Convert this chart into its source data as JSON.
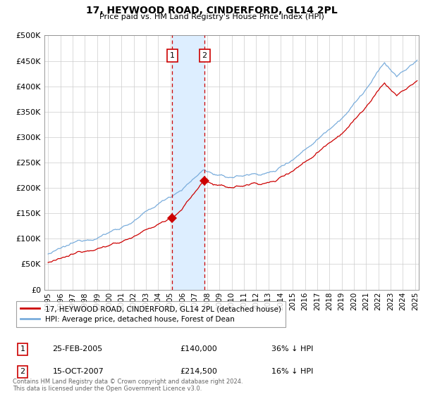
{
  "title": "17, HEYWOOD ROAD, CINDERFORD, GL14 2PL",
  "subtitle": "Price paid vs. HM Land Registry's House Price Index (HPI)",
  "ylabel_ticks": [
    "£0",
    "£50K",
    "£100K",
    "£150K",
    "£200K",
    "£250K",
    "£300K",
    "£350K",
    "£400K",
    "£450K",
    "£500K"
  ],
  "ytick_values": [
    0,
    50000,
    100000,
    150000,
    200000,
    250000,
    300000,
    350000,
    400000,
    450000,
    500000
  ],
  "ylim": [
    0,
    500000
  ],
  "xlim_start": 1994.7,
  "xlim_end": 2025.3,
  "sale1_x": 2005.15,
  "sale1_y": 140000,
  "sale1_label": "1",
  "sale1_date": "25-FEB-2005",
  "sale1_price": "£140,000",
  "sale1_hpi": "36% ↓ HPI",
  "sale2_x": 2007.79,
  "sale2_y": 214500,
  "sale2_label": "2",
  "sale2_date": "15-OCT-2007",
  "sale2_price": "£214,500",
  "sale2_hpi": "16% ↓ HPI",
  "line1_color": "#cc0000",
  "line2_color": "#7aaddc",
  "shade_color": "#ddeeff",
  "footer": "Contains HM Land Registry data © Crown copyright and database right 2024.\nThis data is licensed under the Open Government Licence v3.0.",
  "legend1_label": "17, HEYWOOD ROAD, CINDERFORD, GL14 2PL (detached house)",
  "legend2_label": "HPI: Average price, detached house, Forest of Dean"
}
